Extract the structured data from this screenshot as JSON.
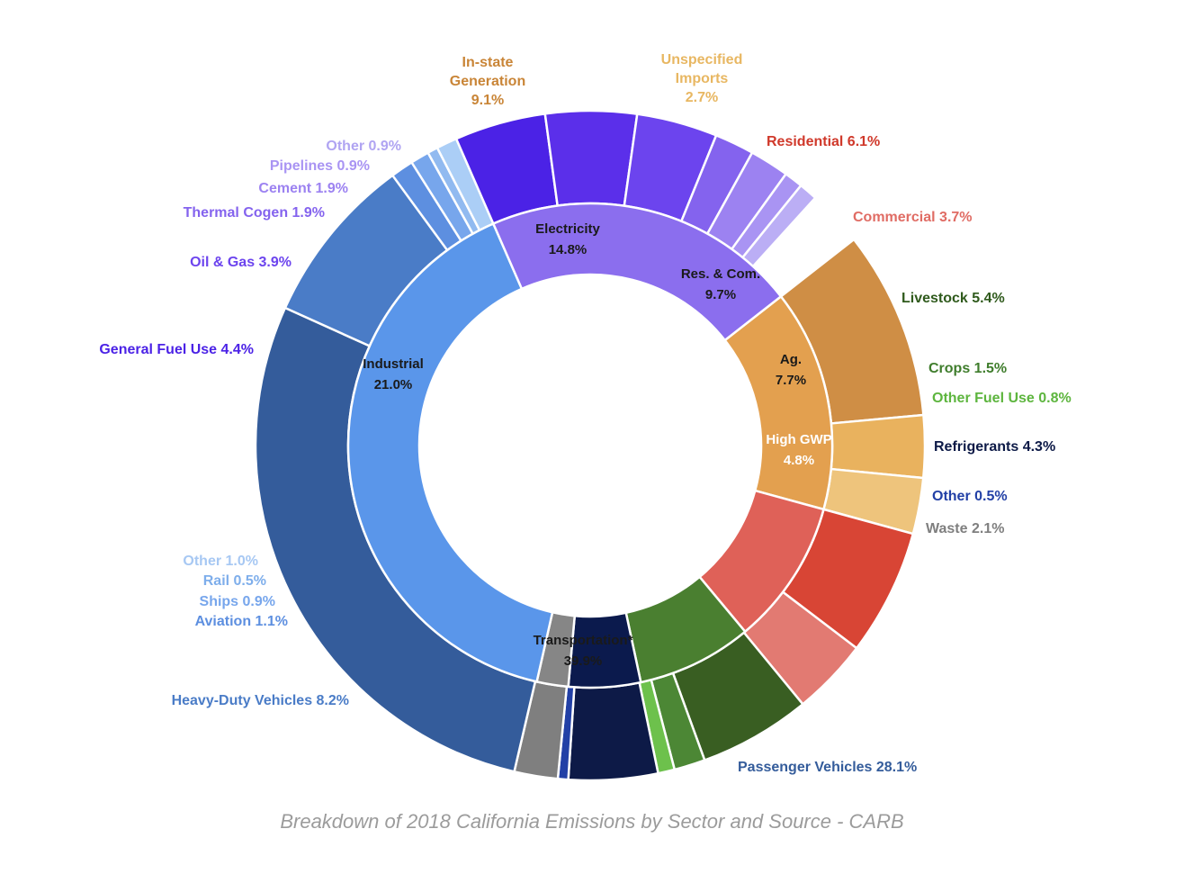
{
  "caption": "Breakdown of 2018 California Emissions by Sector and Source - CARB",
  "chart_data": {
    "type": "pie",
    "subtype": "sunburst-donut",
    "title": "",
    "unit": "%",
    "inner_ring": [
      {
        "name": "Electricity",
        "value": 14.8,
        "label": "Electricity\n14.8%",
        "color": "#E3A04F",
        "text_color": "#1a1a1a"
      },
      {
        "name": "Res. & Com.",
        "value": 9.7,
        "label": "Res. & Com.\n9.7%",
        "color": "#DF6158",
        "text_color": "#1a1a1a"
      },
      {
        "name": "Ag.",
        "value": 7.7,
        "label": "Ag.\n7.7%",
        "color": "#4A7F30",
        "text_color": "#1a1a1a"
      },
      {
        "name": "High GWP",
        "value": 4.8,
        "label": "High GWP\n4.8%",
        "color": "#0B1A4D",
        "text_color": "#ffffff"
      },
      {
        "name": "Waste",
        "value": 2.1,
        "label": "",
        "color": "#868686",
        "text_color": "#1a1a1a"
      },
      {
        "name": "Transportation*",
        "value": 39.9,
        "label": "Transportation*\n39.9%",
        "color": "#5A96EA",
        "text_color": "#1a1a1a"
      },
      {
        "name": "Industrial",
        "value": 21.0,
        "label": "Industrial\n21.0%",
        "color": "#8B6EEE",
        "text_color": "#1a1a1a"
      }
    ],
    "outer_ring": [
      {
        "name": "In-state Generation",
        "value": 9.1,
        "label": "In-state\nGeneration\n9.1%",
        "color": "#CF8E45",
        "text_color": "#C98537"
      },
      {
        "name": "Electricity other",
        "value": 3.0,
        "label": "",
        "color": "#E9B25E",
        "text_color": "#E9B25E"
      },
      {
        "name": "Unspecified Imports",
        "value": 2.7,
        "label": "Unspecified\nImports\n2.7%",
        "color": "#EEC47C",
        "text_color": "#E8B762"
      },
      {
        "name": "Residential",
        "value": 6.1,
        "label": "Residential 6.1%",
        "color": "#D84535",
        "text_color": "#D0392B"
      },
      {
        "name": "Commercial",
        "value": 3.7,
        "label": "Commercial 3.7%",
        "color": "#E27A72",
        "text_color": "#E06C64"
      },
      {
        "name": "Livestock",
        "value": 5.4,
        "label": "Livestock 5.4%",
        "color": "#395E22",
        "text_color": "#2F5A1C"
      },
      {
        "name": "Crops",
        "value": 1.5,
        "label": "Crops 1.5%",
        "color": "#4C8735",
        "text_color": "#3F7D2C"
      },
      {
        "name": "Other Fuel Use",
        "value": 0.8,
        "label": "Other Fuel Use 0.8%",
        "color": "#6DC14C",
        "text_color": "#5DB53E"
      },
      {
        "name": "Refrigerants",
        "value": 4.3,
        "label": "Refrigerants 4.3%",
        "color": "#0D1A47",
        "text_color": "#0D1A47"
      },
      {
        "name": "Other",
        "value": 0.5,
        "label": "Other 0.5%",
        "color": "#2240A6",
        "text_color": "#2240A6"
      },
      {
        "name": "Waste",
        "value": 2.1,
        "label": "Waste 2.1%",
        "color": "#7F7F7F",
        "text_color": "#7F7F7F"
      },
      {
        "name": "Passenger Vehicles",
        "value": 28.1,
        "label": "Passenger Vehicles 28.1%",
        "color": "#345C9B",
        "text_color": "#345C9B"
      },
      {
        "name": "Heavy-Duty Vehicles",
        "value": 8.2,
        "label": "Heavy-Duty Vehicles 8.2%",
        "color": "#4A7CC7",
        "text_color": "#4A7CC7"
      },
      {
        "name": "Aviation",
        "value": 1.1,
        "label": "Aviation 1.1%",
        "color": "#5D8FE0",
        "text_color": "#5D8FE0"
      },
      {
        "name": "Ships",
        "value": 0.9,
        "label": "Ships 0.9%",
        "color": "#77A6EC",
        "text_color": "#77A6EC"
      },
      {
        "name": "Rail",
        "value": 0.5,
        "label": "Rail 0.5%",
        "color": "#91BAF0",
        "text_color": "#7EAEEB"
      },
      {
        "name": "Transportation Other",
        "value": 1.0,
        "label": "Other 1.0%",
        "color": "#ABCEF6",
        "text_color": "#A7C8F3"
      },
      {
        "name": "General Fuel Use",
        "value": 4.4,
        "label": "General Fuel Use 4.4%",
        "color": "#4B22E6",
        "text_color": "#4B22E6"
      },
      {
        "name": "Industrial gap",
        "value": 4.4,
        "label": "",
        "color": "#5B2FEA",
        "text_color": "#5B2FEA"
      },
      {
        "name": "Oil & Gas",
        "value": 3.9,
        "label": "Oil & Gas 3.9%",
        "color": "#6C44EE",
        "text_color": "#6C44EE"
      },
      {
        "name": "Thermal Cogen",
        "value": 1.9,
        "label": "Thermal Cogen 1.9%",
        "color": "#8463EE",
        "text_color": "#8463EE"
      },
      {
        "name": "Cement",
        "value": 1.9,
        "label": "Cement 1.9%",
        "color": "#9C82F1",
        "text_color": "#9C82F1"
      },
      {
        "name": "Pipelines",
        "value": 0.9,
        "label": "Pipelines 0.9%",
        "color": "#A994F3",
        "text_color": "#A994F3"
      },
      {
        "name": "Industrial Other",
        "value": 0.9,
        "label": "Other 0.9%",
        "color": "#BBAEF5",
        "text_color": "#B0A4F2"
      }
    ]
  }
}
